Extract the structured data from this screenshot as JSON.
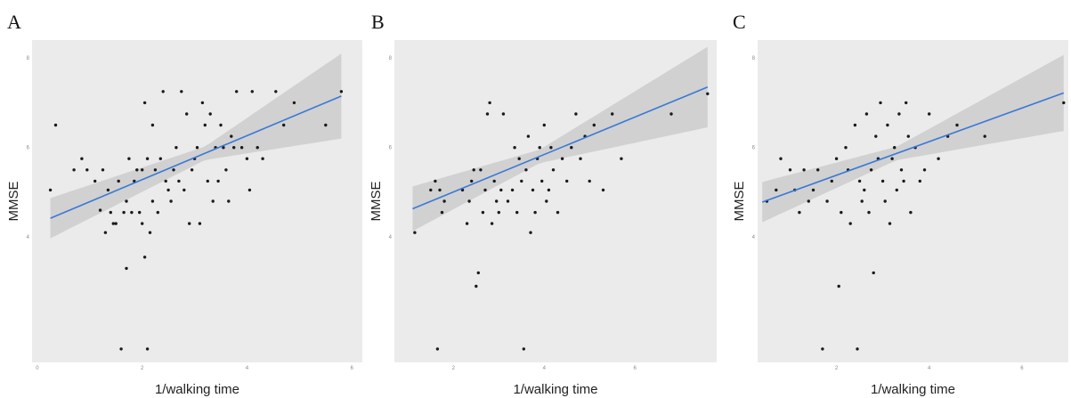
{
  "chart_data": [
    {
      "type": "scatter",
      "panel_label": "A",
      "xlabel": "1/walking time",
      "ylabel": "MMSE",
      "xlim": [
        -0.1,
        6.2
      ],
      "ylim": [
        1.2,
        8.4
      ],
      "xticks": [
        0,
        2,
        4,
        6
      ],
      "yticks": [
        4,
        6,
        8
      ],
      "grid": false,
      "points": [
        [
          0.25,
          5.05
        ],
        [
          0.35,
          6.5
        ],
        [
          0.7,
          5.5
        ],
        [
          0.85,
          5.75
        ],
        [
          0.95,
          5.5
        ],
        [
          1.1,
          5.25
        ],
        [
          1.2,
          4.6
        ],
        [
          1.25,
          5.5
        ],
        [
          1.3,
          4.1
        ],
        [
          1.35,
          5.05
        ],
        [
          1.4,
          4.55
        ],
        [
          1.45,
          4.3
        ],
        [
          1.5,
          4.3
        ],
        [
          1.55,
          5.25
        ],
        [
          1.6,
          1.5
        ],
        [
          1.65,
          4.55
        ],
        [
          1.7,
          3.3
        ],
        [
          1.7,
          4.8
        ],
        [
          1.75,
          5.75
        ],
        [
          1.8,
          4.55
        ],
        [
          1.85,
          5.25
        ],
        [
          1.9,
          5.5
        ],
        [
          1.95,
          4.55
        ],
        [
          2.0,
          4.3
        ],
        [
          2.0,
          5.5
        ],
        [
          2.05,
          3.55
        ],
        [
          2.05,
          7.0
        ],
        [
          2.1,
          1.5
        ],
        [
          2.1,
          5.75
        ],
        [
          2.15,
          4.1
        ],
        [
          2.2,
          6.5
        ],
        [
          2.2,
          4.8
        ],
        [
          2.25,
          5.5
        ],
        [
          2.3,
          4.55
        ],
        [
          2.35,
          5.75
        ],
        [
          2.4,
          7.25
        ],
        [
          2.45,
          5.25
        ],
        [
          2.5,
          5.05
        ],
        [
          2.55,
          4.8
        ],
        [
          2.6,
          5.5
        ],
        [
          2.65,
          6.0
        ],
        [
          2.7,
          5.25
        ],
        [
          2.75,
          7.25
        ],
        [
          2.8,
          5.05
        ],
        [
          2.85,
          6.75
        ],
        [
          2.9,
          4.3
        ],
        [
          2.95,
          5.5
        ],
        [
          3.0,
          5.75
        ],
        [
          3.05,
          6.0
        ],
        [
          3.1,
          4.3
        ],
        [
          3.15,
          7.0
        ],
        [
          3.2,
          6.5
        ],
        [
          3.25,
          5.25
        ],
        [
          3.3,
          6.75
        ],
        [
          3.35,
          4.8
        ],
        [
          3.4,
          6.0
        ],
        [
          3.45,
          5.25
        ],
        [
          3.5,
          6.5
        ],
        [
          3.55,
          6.0
        ],
        [
          3.6,
          5.5
        ],
        [
          3.65,
          4.8
        ],
        [
          3.7,
          6.25
        ],
        [
          3.75,
          6.0
        ],
        [
          3.8,
          7.25
        ],
        [
          3.9,
          6.0
        ],
        [
          4.0,
          5.75
        ],
        [
          4.05,
          5.05
        ],
        [
          4.1,
          7.25
        ],
        [
          4.2,
          6.0
        ],
        [
          4.3,
          5.75
        ],
        [
          4.55,
          7.25
        ],
        [
          4.7,
          6.5
        ],
        [
          4.9,
          7.0
        ],
        [
          5.5,
          6.5
        ],
        [
          5.8,
          7.25
        ]
      ],
      "fit": {
        "x": [
          0.25,
          5.8
        ],
        "y": [
          4.42,
          7.15
        ]
      },
      "ci_half_width": {
        "x": [
          0.25,
          3.2,
          5.8
        ],
        "half": [
          0.45,
          0.15,
          0.95
        ]
      }
    },
    {
      "type": "scatter",
      "panel_label": "B",
      "xlabel": "1/walking time",
      "ylabel": "MMSE",
      "xlim": [
        0.7,
        7.8
      ],
      "ylim": [
        1.2,
        8.4
      ],
      "xticks": [
        2,
        4,
        6
      ],
      "yticks": [
        4,
        6,
        8
      ],
      "grid": false,
      "points": [
        [
          1.15,
          4.1
        ],
        [
          1.5,
          5.05
        ],
        [
          1.6,
          5.25
        ],
        [
          1.65,
          1.5
        ],
        [
          1.7,
          5.05
        ],
        [
          1.75,
          4.55
        ],
        [
          1.8,
          4.8
        ],
        [
          2.2,
          5.05
        ],
        [
          2.3,
          4.3
        ],
        [
          2.35,
          4.8
        ],
        [
          2.4,
          5.25
        ],
        [
          2.45,
          5.5
        ],
        [
          2.5,
          2.9
        ],
        [
          2.55,
          3.2
        ],
        [
          2.6,
          5.5
        ],
        [
          2.65,
          4.55
        ],
        [
          2.7,
          5.05
        ],
        [
          2.75,
          6.75
        ],
        [
          2.8,
          7.0
        ],
        [
          2.85,
          4.3
        ],
        [
          2.9,
          5.25
        ],
        [
          2.95,
          4.8
        ],
        [
          3.0,
          4.55
        ],
        [
          3.05,
          5.05
        ],
        [
          3.1,
          6.75
        ],
        [
          3.2,
          4.8
        ],
        [
          3.3,
          5.05
        ],
        [
          3.35,
          6.0
        ],
        [
          3.4,
          4.55
        ],
        [
          3.45,
          5.75
        ],
        [
          3.5,
          5.25
        ],
        [
          3.55,
          1.5
        ],
        [
          3.6,
          5.5
        ],
        [
          3.65,
          6.25
        ],
        [
          3.7,
          4.1
        ],
        [
          3.75,
          5.05
        ],
        [
          3.8,
          4.55
        ],
        [
          3.85,
          5.75
        ],
        [
          3.9,
          6.0
        ],
        [
          3.95,
          5.25
        ],
        [
          4.0,
          6.5
        ],
        [
          4.05,
          4.8
        ],
        [
          4.1,
          5.05
        ],
        [
          4.15,
          6.0
        ],
        [
          4.2,
          5.5
        ],
        [
          4.3,
          4.55
        ],
        [
          4.4,
          5.75
        ],
        [
          4.5,
          5.25
        ],
        [
          4.6,
          6.0
        ],
        [
          4.7,
          6.75
        ],
        [
          4.8,
          5.75
        ],
        [
          4.9,
          6.25
        ],
        [
          5.0,
          5.25
        ],
        [
          5.1,
          6.5
        ],
        [
          5.3,
          5.05
        ],
        [
          5.5,
          6.75
        ],
        [
          5.7,
          5.75
        ],
        [
          6.8,
          6.75
        ],
        [
          7.6,
          7.2
        ]
      ],
      "fit": {
        "x": [
          1.1,
          7.6
        ],
        "y": [
          4.63,
          7.35
        ]
      },
      "ci_half_width": {
        "x": [
          1.1,
          3.9,
          7.6
        ],
        "half": [
          0.5,
          0.15,
          0.9
        ]
      }
    },
    {
      "type": "scatter",
      "panel_label": "C",
      "xlabel": "1/walking time",
      "ylabel": "MMSE",
      "xlim": [
        0.3,
        7.0
      ],
      "ylim": [
        1.2,
        8.4
      ],
      "xticks": [
        2,
        4,
        6
      ],
      "yticks": [
        4,
        6,
        8
      ],
      "grid": false,
      "points": [
        [
          0.5,
          4.8
        ],
        [
          0.7,
          5.05
        ],
        [
          0.8,
          5.75
        ],
        [
          1.0,
          5.5
        ],
        [
          1.1,
          5.05
        ],
        [
          1.2,
          4.55
        ],
        [
          1.3,
          5.5
        ],
        [
          1.4,
          4.8
        ],
        [
          1.5,
          5.05
        ],
        [
          1.6,
          5.5
        ],
        [
          1.7,
          1.5
        ],
        [
          1.8,
          4.8
        ],
        [
          1.9,
          5.25
        ],
        [
          2.0,
          5.75
        ],
        [
          2.05,
          2.9
        ],
        [
          2.1,
          4.55
        ],
        [
          2.2,
          6.0
        ],
        [
          2.25,
          5.5
        ],
        [
          2.3,
          4.3
        ],
        [
          2.4,
          6.5
        ],
        [
          2.45,
          1.5
        ],
        [
          2.5,
          5.25
        ],
        [
          2.55,
          4.8
        ],
        [
          2.6,
          5.05
        ],
        [
          2.65,
          6.75
        ],
        [
          2.7,
          4.55
        ],
        [
          2.75,
          5.5
        ],
        [
          2.8,
          3.2
        ],
        [
          2.85,
          6.25
        ],
        [
          2.9,
          5.75
        ],
        [
          2.95,
          7.0
        ],
        [
          3.0,
          5.25
        ],
        [
          3.05,
          4.8
        ],
        [
          3.1,
          6.5
        ],
        [
          3.15,
          4.3
        ],
        [
          3.2,
          5.75
        ],
        [
          3.25,
          6.0
        ],
        [
          3.3,
          5.05
        ],
        [
          3.35,
          6.75
        ],
        [
          3.4,
          5.5
        ],
        [
          3.45,
          5.25
        ],
        [
          3.5,
          7.0
        ],
        [
          3.55,
          6.25
        ],
        [
          3.6,
          4.55
        ],
        [
          3.7,
          6.0
        ],
        [
          3.8,
          5.25
        ],
        [
          3.9,
          5.5
        ],
        [
          4.0,
          6.75
        ],
        [
          4.2,
          5.75
        ],
        [
          4.4,
          6.25
        ],
        [
          4.6,
          6.5
        ],
        [
          5.2,
          6.25
        ],
        [
          6.9,
          7.0
        ]
      ],
      "fit": {
        "x": [
          0.4,
          6.9
        ],
        "y": [
          4.78,
          7.22
        ]
      },
      "ci_half_width": {
        "x": [
          0.4,
          3.3,
          6.9
        ],
        "half": [
          0.45,
          0.15,
          0.85
        ]
      }
    }
  ]
}
